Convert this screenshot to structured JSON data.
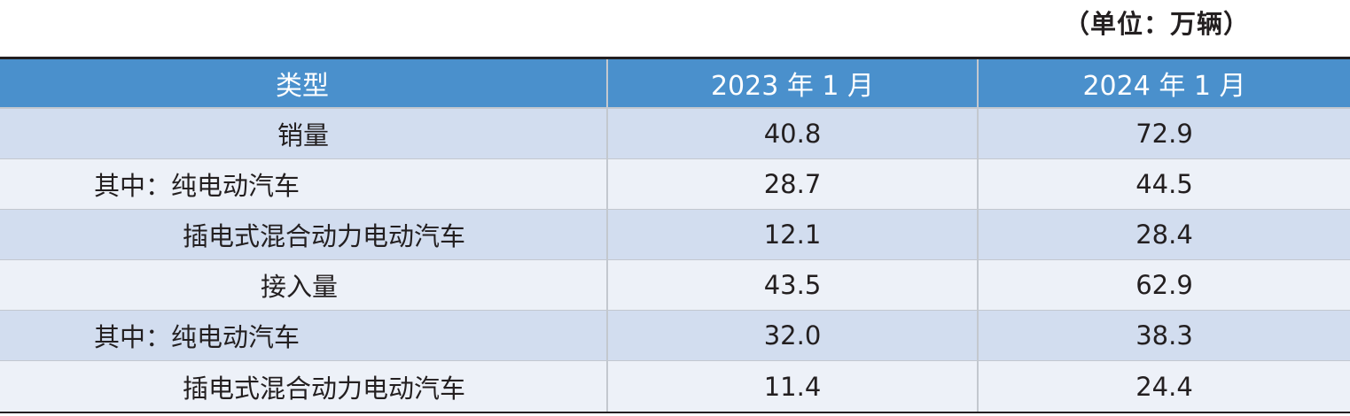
{
  "unit_note": "（单位：万辆）",
  "table": {
    "headers": [
      "类型",
      "2023 年 1 月",
      "2024 年 1 月"
    ],
    "rows": [
      {
        "label": "销量",
        "v2023": "40.8",
        "v2024": "72.9"
      },
      {
        "label": "其中：纯电动汽车",
        "v2023": "28.7",
        "v2024": "44.5"
      },
      {
        "label": "插电式混合动力电动汽车",
        "v2023": "12.1",
        "v2024": "28.4"
      },
      {
        "label": "接入量",
        "v2023": "43.5",
        "v2024": "62.9"
      },
      {
        "label": "其中：纯电动汽车",
        "v2023": "32.0",
        "v2024": "38.3"
      },
      {
        "label": "插电式混合动力电动汽车",
        "v2023": "11.4",
        "v2024": "24.4"
      }
    ]
  },
  "colors": {
    "header_bg": "#4a90cc",
    "row_dark": "#d2ddef",
    "row_light": "#edf1f8",
    "rule": "#231f20"
  }
}
